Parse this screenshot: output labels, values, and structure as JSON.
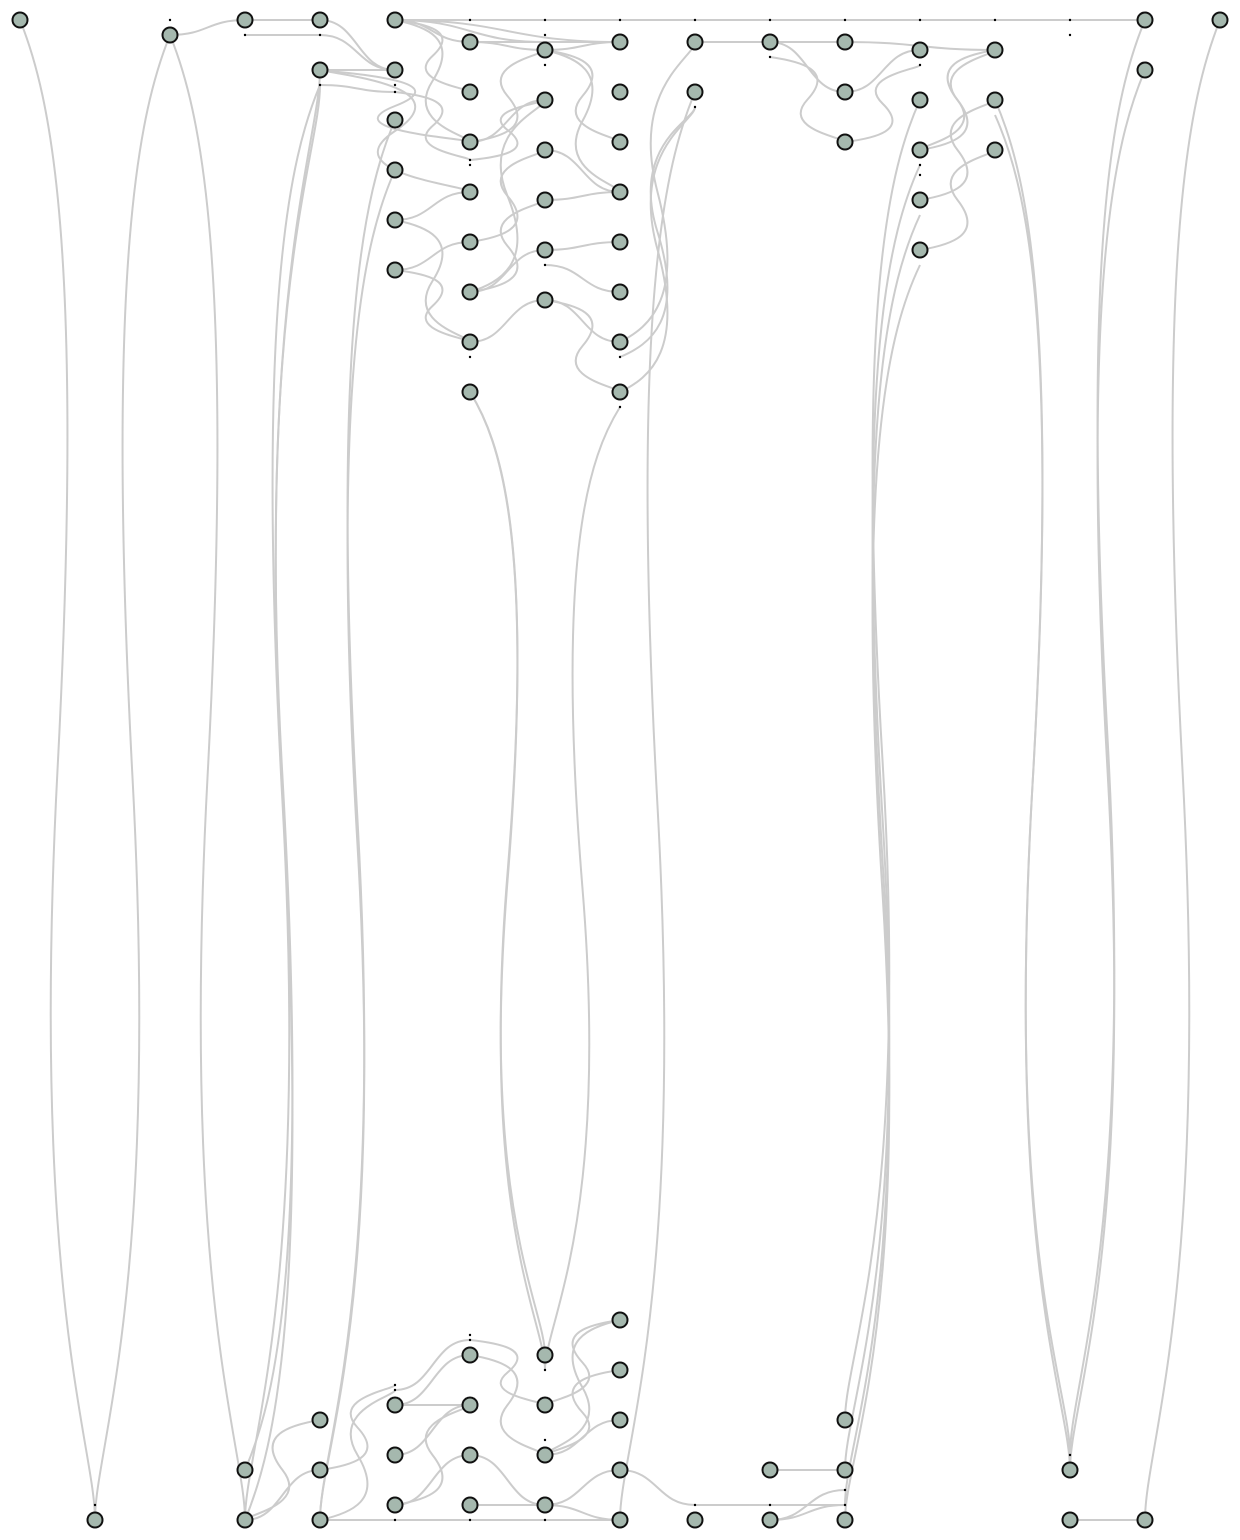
{
  "diagram": {
    "type": "layered-graph",
    "node_fill": "#a5b8ae",
    "node_stroke": "#111111",
    "edge_color": "#cccccc",
    "background": "#ffffff",
    "node_count": 96,
    "labels": []
  }
}
